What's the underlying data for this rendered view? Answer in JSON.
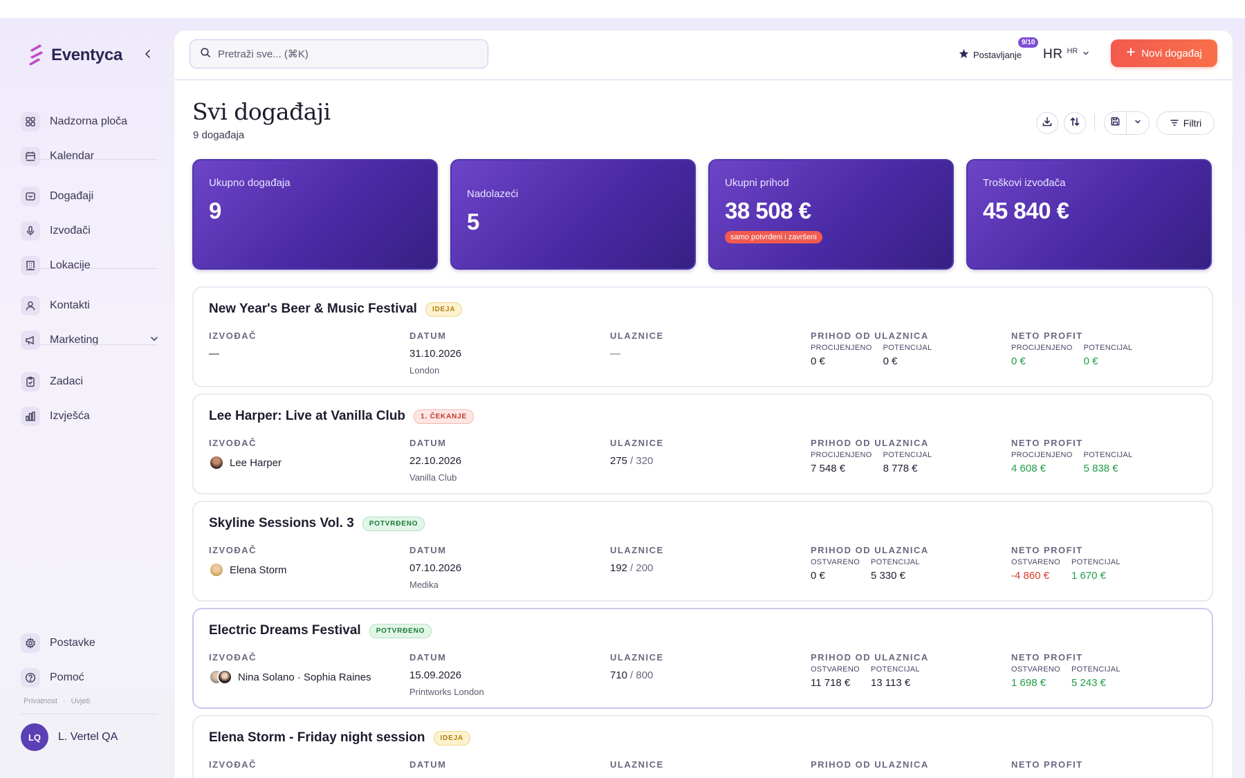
{
  "brand": {
    "name": "Eventyca"
  },
  "sidebar": {
    "items": [
      {
        "label": "Nadzorna ploča"
      },
      {
        "label": "Kalendar"
      },
      {
        "label": "Događaji"
      },
      {
        "label": "Izvođači"
      },
      {
        "label": "Lokacije"
      },
      {
        "label": "Kontakti"
      },
      {
        "label": "Marketing"
      },
      {
        "label": "Zadaci"
      },
      {
        "label": "Izvješća"
      }
    ],
    "footer": [
      {
        "label": "Postavke"
      },
      {
        "label": "Pomoć"
      }
    ],
    "legal": {
      "privacy": "Privatnost",
      "terms": "Uvjeti"
    },
    "user": {
      "initials": "LQ",
      "name": "L. Vertel QA"
    }
  },
  "topbar": {
    "search_placeholder": "Pretraži sve... (⌘K)",
    "setup_label": "Postavljanje",
    "setup_badge": "9/10",
    "lang_big": "HR",
    "lang_small": "HR",
    "new_event_label": "Novi događaj"
  },
  "page": {
    "title": "Svi događaji",
    "subtitle": "9 događaja",
    "filters_label": "Filtri"
  },
  "stats": [
    {
      "label": "Ukupno događaja",
      "value": "9"
    },
    {
      "label": "Nadolazeći",
      "value": "5"
    },
    {
      "label": "Ukupni prihod",
      "value": "38 508 €",
      "badge": "samo potvrđeni i završeni"
    },
    {
      "label": "Troškovi izvođača",
      "value": "45 840 €"
    }
  ],
  "columns": {
    "artist": "IZVOĐAČ",
    "date": "DATUM",
    "tickets": "ULAZNICE",
    "revenue": "PRIHOD OD ULAZNICA",
    "profit": "NETO PROFIT"
  },
  "events": [
    {
      "name": "New Year's Beer & Music Festival",
      "status": "IDEJA",
      "artist": "—",
      "date": "31.10.2026",
      "venue": "London",
      "tickets_sold": "—",
      "tickets_total": "",
      "rev_lbl1": "PROCIJENJENO",
      "rev_val1": "0 €",
      "rev_lbl2": "POTENCIJAL",
      "rev_val2": "0 €",
      "prof_lbl1": "PROCIJENJENO",
      "prof_val1": "0 €",
      "prof_lbl2": "POTENCIJAL",
      "prof_val2": "0 €"
    },
    {
      "name": "Lee Harper: Live at Vanilla Club",
      "status": "1. ČEKANJE",
      "artist": "Lee Harper",
      "date": "22.10.2026",
      "venue": "Vanilla Club",
      "tickets_sold": "275",
      "tickets_total": "/ 320",
      "rev_lbl1": "PROCIJENJENO",
      "rev_val1": "7 548 €",
      "rev_lbl2": "POTENCIJAL",
      "rev_val2": "8 778 €",
      "prof_lbl1": "PROCIJENJENO",
      "prof_val1": "4 608 €",
      "prof_lbl2": "POTENCIJAL",
      "prof_val2": "5 838 €"
    },
    {
      "name": "Skyline Sessions Vol. 3",
      "status": "POTVRĐENO",
      "artist": "Elena Storm",
      "date": "07.10.2026",
      "venue": "Medika",
      "tickets_sold": "192",
      "tickets_total": "/ 200",
      "rev_lbl1": "OSTVARENO",
      "rev_val1": "0 €",
      "rev_lbl2": "POTENCIJAL",
      "rev_val2": "5 330 €",
      "prof_lbl1": "OSTVARENO",
      "prof_val1": "-4 860 €",
      "prof_lbl2": "POTENCIJAL",
      "prof_val2": "1 670 €"
    },
    {
      "name": "Electric Dreams Festival",
      "status": "POTVRĐENO",
      "artist": "Nina Solano · Sophia Raines",
      "date": "15.09.2026",
      "venue": "Printworks London",
      "tickets_sold": "710",
      "tickets_total": "/ 800",
      "rev_lbl1": "OSTVARENO",
      "rev_val1": "11 718 €",
      "rev_lbl2": "POTENCIJAL",
      "rev_val2": "13 113 €",
      "prof_lbl1": "OSTVARENO",
      "prof_val1": "1 698 €",
      "prof_lbl2": "POTENCIJAL",
      "prof_val2": "5 243 €"
    },
    {
      "name": "Elena Storm - Friday night session",
      "status": "IDEJA"
    }
  ],
  "colors": {
    "accent": "#5b3fb5",
    "cta": "#f35a4f",
    "positive": "#1f9d45",
    "negative": "#d63a2c"
  }
}
